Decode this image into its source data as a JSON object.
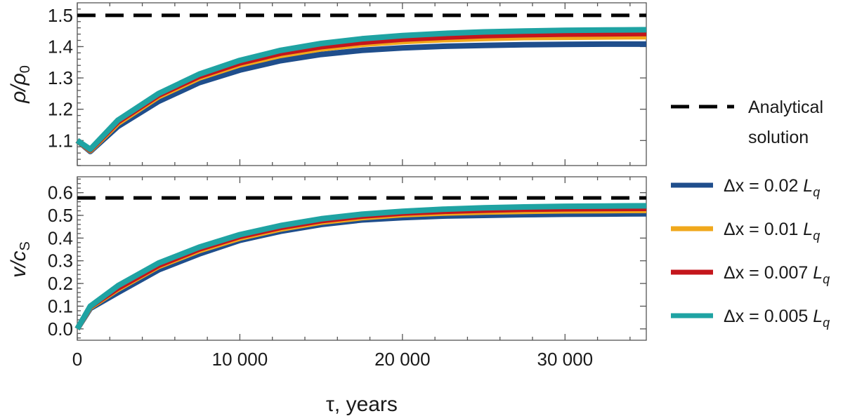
{
  "chart_data": [
    {
      "type": "line",
      "panel": "top",
      "ylabel": "ρ/ρ",
      "ylabel_sub": "0",
      "xlim": [
        0,
        35000
      ],
      "ylim": [
        1.02,
        1.54
      ],
      "yticks": [
        1.1,
        1.2,
        1.3,
        1.4,
        1.5
      ],
      "ytick_labels": [
        "1.1",
        "1.2",
        "1.3",
        "1.4",
        "1.5"
      ],
      "xtick_labels_shown": false,
      "reference": {
        "name": "Analytical solution",
        "value": 1.5,
        "style": "dashed",
        "color": "#000000"
      },
      "series": [
        {
          "name": "Δx = 0.02 L",
          "color": "#1f4e8c",
          "x": [
            0,
            800,
            2500,
            5000,
            7500,
            10000,
            12500,
            15000,
            17500,
            20000,
            22500,
            25000,
            27500,
            30000,
            32500,
            35000
          ],
          "y": [
            1.1,
            1.065,
            1.145,
            1.225,
            1.285,
            1.325,
            1.355,
            1.375,
            1.388,
            1.396,
            1.401,
            1.404,
            1.406,
            1.407,
            1.408,
            1.408
          ]
        },
        {
          "name": "Δx = 0.01 L",
          "color": "#f0a81c",
          "x": [
            0,
            800,
            2500,
            5000,
            7500,
            10000,
            12500,
            15000,
            17500,
            20000,
            22500,
            25000,
            27500,
            30000,
            32500,
            35000
          ],
          "y": [
            1.1,
            1.068,
            1.155,
            1.24,
            1.3,
            1.342,
            1.372,
            1.393,
            1.407,
            1.416,
            1.422,
            1.426,
            1.429,
            1.43,
            1.431,
            1.432
          ]
        },
        {
          "name": "Δx = 0.007 L",
          "color": "#c4161c",
          "x": [
            0,
            800,
            2500,
            5000,
            7500,
            10000,
            12500,
            15000,
            17500,
            20000,
            22500,
            25000,
            27500,
            30000,
            32500,
            35000
          ],
          "y": [
            1.1,
            1.07,
            1.16,
            1.245,
            1.305,
            1.348,
            1.379,
            1.4,
            1.414,
            1.424,
            1.43,
            1.435,
            1.438,
            1.44,
            1.441,
            1.442
          ]
        },
        {
          "name": "Δx = 0.005 L",
          "color": "#1fa3a3",
          "x": [
            0,
            800,
            2500,
            5000,
            7500,
            10000,
            12500,
            15000,
            17500,
            20000,
            22500,
            25000,
            27500,
            30000,
            32500,
            35000
          ],
          "y": [
            1.1,
            1.072,
            1.165,
            1.25,
            1.312,
            1.356,
            1.388,
            1.41,
            1.425,
            1.435,
            1.442,
            1.447,
            1.45,
            1.452,
            1.453,
            1.454
          ]
        }
      ]
    },
    {
      "type": "line",
      "panel": "bottom",
      "ylabel": "v/c",
      "ylabel_sub": "S",
      "xlabel": "τ, years",
      "xlim": [
        0,
        35000
      ],
      "ylim": [
        -0.05,
        0.67
      ],
      "yticks": [
        0.0,
        0.1,
        0.2,
        0.3,
        0.4,
        0.5,
        0.6
      ],
      "ytick_labels": [
        "0.0",
        "0.1",
        "0.2",
        "0.3",
        "0.4",
        "0.5",
        "0.6"
      ],
      "xticks": [
        0,
        10000,
        20000,
        30000
      ],
      "xtick_labels": [
        "0",
        "10 000",
        "20 000",
        "30 000"
      ],
      "reference": {
        "name": "Analytical solution",
        "value": 0.577,
        "style": "dashed",
        "color": "#000000"
      },
      "series": [
        {
          "name": "Δx = 0.02 L",
          "color": "#1f4e8c",
          "x": [
            0,
            800,
            2500,
            5000,
            7500,
            10000,
            12500,
            15000,
            17500,
            20000,
            22500,
            25000,
            27500,
            30000,
            32500,
            35000
          ],
          "y": [
            0.0,
            0.09,
            0.16,
            0.26,
            0.33,
            0.39,
            0.43,
            0.46,
            0.48,
            0.49,
            0.497,
            0.5,
            0.503,
            0.505,
            0.506,
            0.507
          ]
        },
        {
          "name": "Δx = 0.01 L",
          "color": "#f0a81c",
          "x": [
            0,
            800,
            2500,
            5000,
            7500,
            10000,
            12500,
            15000,
            17500,
            20000,
            22500,
            25000,
            27500,
            30000,
            32500,
            35000
          ],
          "y": [
            0.0,
            0.095,
            0.175,
            0.275,
            0.345,
            0.4,
            0.44,
            0.47,
            0.49,
            0.503,
            0.51,
            0.515,
            0.518,
            0.52,
            0.521,
            0.522
          ]
        },
        {
          "name": "Δx = 0.007 L",
          "color": "#c4161c",
          "x": [
            0,
            800,
            2500,
            5000,
            7500,
            10000,
            12500,
            15000,
            17500,
            20000,
            22500,
            25000,
            27500,
            30000,
            32500,
            35000
          ],
          "y": [
            0.0,
            0.098,
            0.18,
            0.28,
            0.352,
            0.407,
            0.447,
            0.477,
            0.497,
            0.51,
            0.518,
            0.523,
            0.527,
            0.529,
            0.53,
            0.531
          ]
        },
        {
          "name": "Δx = 0.005 L",
          "color": "#1fa3a3",
          "x": [
            0,
            800,
            2500,
            5000,
            7500,
            10000,
            12500,
            15000,
            17500,
            20000,
            22500,
            25000,
            27500,
            30000,
            32500,
            35000
          ],
          "y": [
            0.0,
            0.1,
            0.19,
            0.29,
            0.36,
            0.415,
            0.455,
            0.485,
            0.505,
            0.518,
            0.527,
            0.533,
            0.537,
            0.54,
            0.541,
            0.542
          ]
        }
      ]
    }
  ],
  "legend": {
    "placement": "right",
    "reference_label_line1": "Analytical",
    "reference_label_line2": "solution",
    "subscript": "q",
    "entries": [
      {
        "label": "Δx = 0.02 L",
        "color": "#1f4e8c"
      },
      {
        "label": "Δx = 0.01 L",
        "color": "#f0a81c"
      },
      {
        "label": "Δx = 0.007 L",
        "color": "#c4161c"
      },
      {
        "label": "Δx = 0.005 L",
        "color": "#1fa3a3"
      }
    ]
  }
}
